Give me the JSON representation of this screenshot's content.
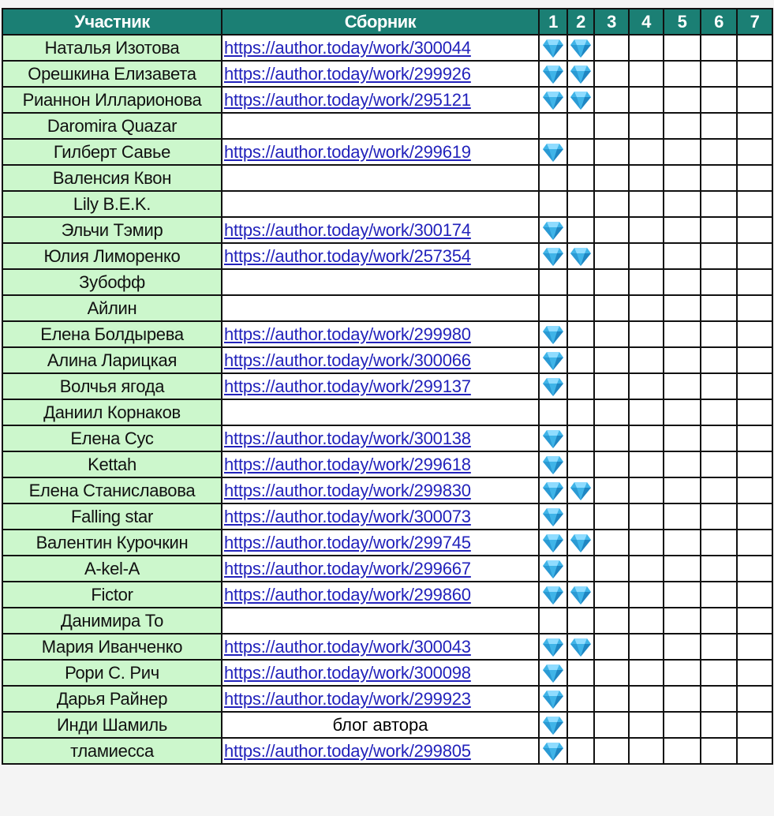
{
  "header": {
    "participant": "Участник",
    "collection": "Сборник",
    "rounds": [
      "1",
      "2",
      "3",
      "4",
      "5",
      "6",
      "7"
    ]
  },
  "colors": {
    "header_bg": "#1b7f74",
    "name_bg": "#ccf7cc",
    "link": "#2222bb",
    "gem": "#3fb4e8"
  },
  "mark_icon": "gem-icon",
  "rows": [
    {
      "name": "Наталья Изотова",
      "link": "https://author.today/work/300044",
      "gems": 2
    },
    {
      "name": "Орешкина Елизавета",
      "link": "https://author.today/work/299926",
      "gems": 2
    },
    {
      "name": "Рианнон Илларионова",
      "link": "https://author.today/work/295121",
      "gems": 2
    },
    {
      "name": "Daromira Quazar",
      "link": "",
      "gems": 0
    },
    {
      "name": "Гилберт Савье",
      "link": "https://author.today/work/299619",
      "gems": 1
    },
    {
      "name": "Валенсия Квон",
      "link": "",
      "gems": 0
    },
    {
      "name": "Lily B.E.K.",
      "link": "",
      "gems": 0
    },
    {
      "name": "Эльчи Тэмир",
      "link": "https://author.today/work/300174",
      "gems": 1
    },
    {
      "name": "Юлия Лиморенко",
      "link": "https://author.today/work/257354",
      "gems": 2
    },
    {
      "name": "Зубофф",
      "link": "",
      "gems": 0
    },
    {
      "name": "Айлин",
      "link": "",
      "gems": 0
    },
    {
      "name": "Елена Болдырева",
      "link": "https://author.today/work/299980",
      "gems": 1
    },
    {
      "name": "Алина Ларицкая",
      "link": "https://author.today/work/300066",
      "gems": 1
    },
    {
      "name": "Волчья ягода",
      "link": "https://author.today/work/299137",
      "gems": 1
    },
    {
      "name": "Даниил Корнаков",
      "link": "",
      "gems": 0
    },
    {
      "name": "Елена Сус",
      "link": "https://author.today/work/300138",
      "gems": 1
    },
    {
      "name": "Kettah",
      "link": "https://author.today/work/299618",
      "gems": 1
    },
    {
      "name": "Елена Станиславова",
      "link": "https://author.today/work/299830",
      "gems": 2
    },
    {
      "name": "Falling star",
      "link": "https://author.today/work/300073",
      "gems": 1
    },
    {
      "name": "Валентин Курочкин",
      "link": "https://author.today/work/299745",
      "gems": 2
    },
    {
      "name": "A-kel-A",
      "link": "https://author.today/work/299667",
      "gems": 1
    },
    {
      "name": "Fictor",
      "link": "https://author.today/work/299860",
      "gems": 2
    },
    {
      "name": "Данимира То",
      "link": "",
      "gems": 0
    },
    {
      "name": "Мария Иванченко",
      "link": "https://author.today/work/300043",
      "gems": 2
    },
    {
      "name": "Рори С. Рич",
      "link": "https://author.today/work/300098",
      "gems": 1
    },
    {
      "name": "Дарья Райнер",
      "link": "https://author.today/work/299923",
      "gems": 1
    },
    {
      "name": "Инди Шамиль",
      "text": "блог автора",
      "gems": 1
    },
    {
      "name": "тламиесса",
      "link": "https://author.today/work/299805",
      "gems": 1
    }
  ]
}
